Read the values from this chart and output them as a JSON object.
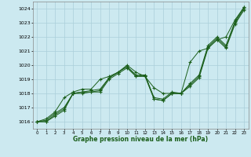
{
  "xlabel": "Graphe pression niveau de la mer (hPa)",
  "x_ticks": [
    0,
    1,
    2,
    3,
    4,
    5,
    6,
    7,
    8,
    9,
    10,
    11,
    12,
    13,
    14,
    15,
    16,
    17,
    18,
    19,
    20,
    21,
    22,
    23
  ],
  "ylim": [
    1015.5,
    1024.5
  ],
  "xlim": [
    -0.5,
    23.5
  ],
  "yticks": [
    1016,
    1017,
    1018,
    1019,
    1020,
    1021,
    1022,
    1023,
    1024
  ],
  "bg_color": "#cce9f0",
  "grid_color": "#aacfda",
  "line_color": "#1a5e1a",
  "lines": [
    [
      1016.0,
      1016.0,
      1016.5,
      1016.9,
      1018.0,
      1018.1,
      1018.1,
      1018.2,
      1019.1,
      1019.5,
      1019.9,
      1019.2,
      1019.3,
      1017.6,
      1017.5,
      1018.0,
      1018.0,
      1018.6,
      1019.2,
      1021.3,
      1021.9,
      1021.3,
      1023.0,
      1024.0
    ],
    [
      1016.0,
      1016.1,
      1016.6,
      1017.0,
      1018.0,
      1018.1,
      1018.2,
      1018.3,
      1019.1,
      1019.5,
      1019.9,
      1019.3,
      1019.3,
      1017.7,
      1017.6,
      1018.1,
      1018.0,
      1018.7,
      1019.3,
      1021.4,
      1022.0,
      1021.4,
      1023.1,
      1024.1
    ],
    [
      1016.0,
      1016.0,
      1016.4,
      1016.8,
      1018.0,
      1018.0,
      1018.1,
      1018.1,
      1019.0,
      1019.4,
      1019.8,
      1019.2,
      1019.2,
      1017.6,
      1017.5,
      1018.0,
      1018.0,
      1018.5,
      1019.1,
      1021.2,
      1021.8,
      1021.2,
      1022.9,
      1023.9
    ],
    [
      1016.0,
      1016.2,
      1016.7,
      1017.7,
      1018.1,
      1018.3,
      1018.3,
      1019.0,
      1019.2,
      1019.5,
      1020.0,
      1019.5,
      1019.2,
      1018.4,
      1018.0,
      1018.0,
      1018.0,
      1020.2,
      1021.0,
      1021.2,
      1021.8,
      1022.0,
      1023.2,
      1024.1
    ]
  ],
  "figsize": [
    3.2,
    2.0
  ],
  "dpi": 100
}
